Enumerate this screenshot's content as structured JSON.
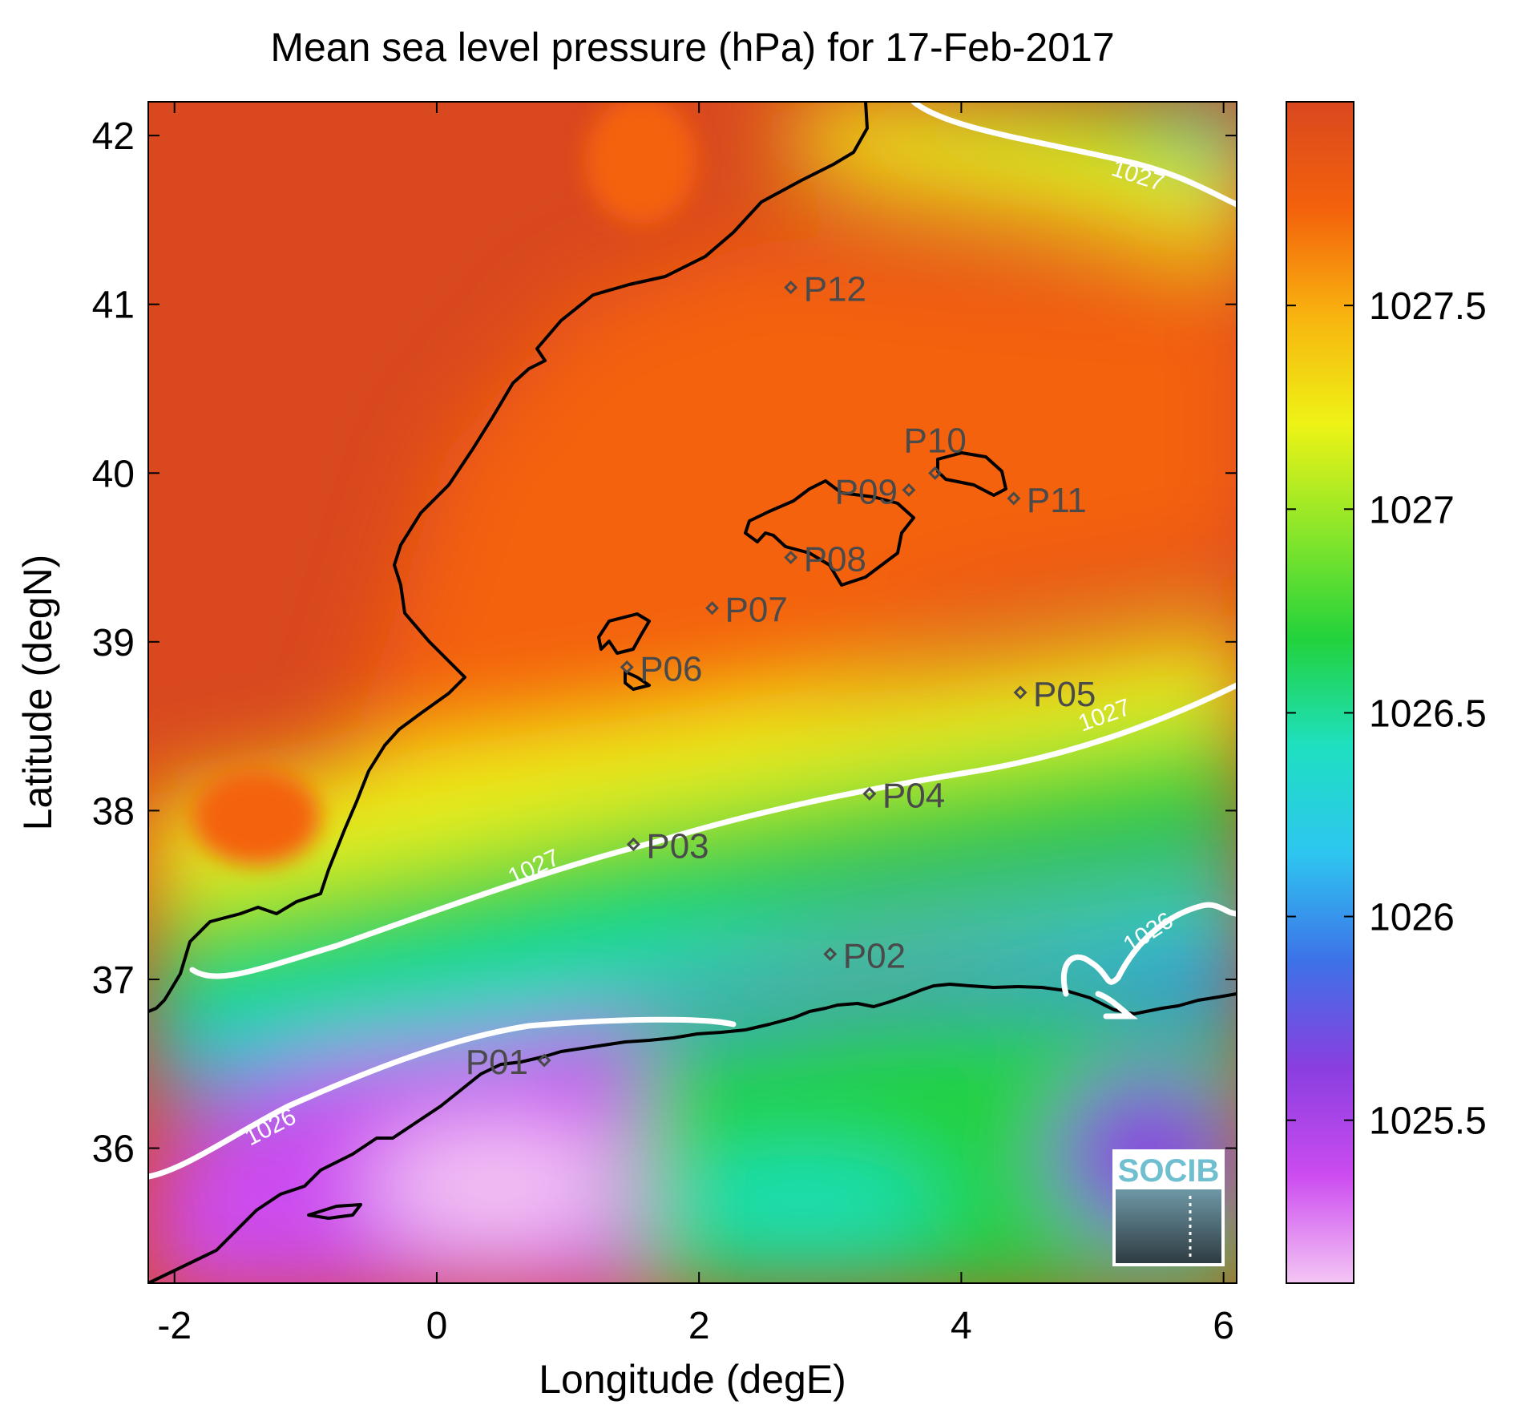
{
  "title": "Mean sea level pressure (hPa) for 17-Feb-2017",
  "axes": {
    "xlabel": "Longitude (degE)",
    "ylabel": "Latitude (degN)",
    "xlim": [
      -2.2,
      6.1
    ],
    "ylim": [
      35.2,
      42.2
    ],
    "xticks": [
      "-2",
      "0",
      "2",
      "4",
      "6"
    ],
    "yticks": [
      "36",
      "37",
      "38",
      "39",
      "40",
      "41",
      "42"
    ]
  },
  "colorbar": {
    "range": [
      1025.1,
      1028.0
    ],
    "ticks": [
      "1025.5",
      "1026",
      "1026.5",
      "1027",
      "1027.5"
    ],
    "colormap": [
      "#f4c6f4",
      "#cc4cf0",
      "#8a3ee0",
      "#3d72e8",
      "#2ec6f0",
      "#1ee0c0",
      "#22d23c",
      "#8ae62a",
      "#eef316",
      "#f8b40f",
      "#f4620c",
      "#d9481f"
    ]
  },
  "contour_labels": [
    "1027",
    "1027",
    "1027",
    "1026",
    "1026"
  ],
  "stations": [
    {
      "id": "P01",
      "lon": 0.82,
      "lat": 36.52
    },
    {
      "id": "P02",
      "lon": 3.0,
      "lat": 37.15
    },
    {
      "id": "P03",
      "lon": 1.5,
      "lat": 37.8
    },
    {
      "id": "P04",
      "lon": 3.3,
      "lat": 38.1
    },
    {
      "id": "P05",
      "lon": 4.45,
      "lat": 38.7
    },
    {
      "id": "P06",
      "lon": 1.45,
      "lat": 38.85
    },
    {
      "id": "P07",
      "lon": 2.1,
      "lat": 39.2
    },
    {
      "id": "P08",
      "lon": 2.7,
      "lat": 39.5
    },
    {
      "id": "P09",
      "lon": 3.6,
      "lat": 39.9
    },
    {
      "id": "P10",
      "lon": 3.8,
      "lat": 40.0
    },
    {
      "id": "P11",
      "lon": 4.4,
      "lat": 39.85
    },
    {
      "id": "P12",
      "lon": 2.7,
      "lat": 41.1
    }
  ],
  "logo": "SOCIB"
}
